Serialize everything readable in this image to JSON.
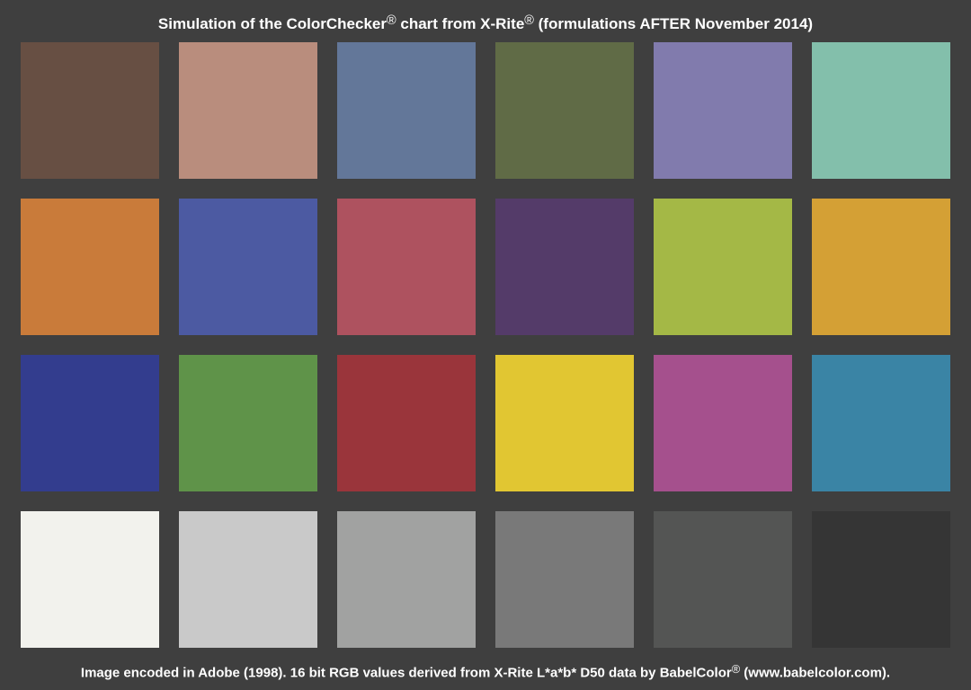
{
  "title": {
    "part1": "Simulation of the ColorChecker",
    "reg1": "®",
    "part2": " chart from X-Rite",
    "reg2": "®",
    "part3": " (formulations AFTER November 2014)"
  },
  "footer": {
    "part1": "Image encoded in Adobe (1998). 16 bit RGB values derived from X-Rite L*a*b* D50 data by BabelColor",
    "reg": "®",
    "part2": " (www.babelcolor.com)."
  },
  "patches": [
    {
      "color": "#674f43"
    },
    {
      "color": "#b98d7d"
    },
    {
      "color": "#637799"
    },
    {
      "color": "#606b46"
    },
    {
      "color": "#817bad"
    },
    {
      "color": "#83bfab"
    },
    {
      "color": "#c97b3a"
    },
    {
      "color": "#4c5aa2"
    },
    {
      "color": "#ae525f"
    },
    {
      "color": "#543b69"
    },
    {
      "color": "#a4b846"
    },
    {
      "color": "#d4a035"
    },
    {
      "color": "#333d8e"
    },
    {
      "color": "#5f9349"
    },
    {
      "color": "#9a353b"
    },
    {
      "color": "#e1c632"
    },
    {
      "color": "#a5508d"
    },
    {
      "color": "#3a84a5"
    },
    {
      "color": "#f2f2ed"
    },
    {
      "color": "#c9c9c9"
    },
    {
      "color": "#a1a2a1"
    },
    {
      "color": "#797979"
    },
    {
      "color": "#545554"
    },
    {
      "color": "#353535"
    }
  ]
}
